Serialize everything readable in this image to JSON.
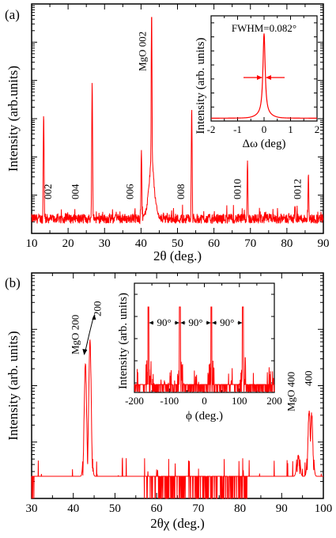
{
  "colors": {
    "trace": "#ff0000",
    "axis": "#000000",
    "background": "#ffffff"
  },
  "chart_data": [
    {
      "panel": "(a)",
      "type": "line",
      "xlabel": "2θ (deg.)",
      "ylabel": "Intensity (arb.units)",
      "xlim": [
        10,
        90
      ],
      "xticks": [
        10,
        20,
        30,
        40,
        50,
        60,
        70,
        80,
        90
      ],
      "y_scale": "log",
      "peaks": [
        {
          "x": 13.3,
          "height": 0.55
        },
        {
          "x": 26.6,
          "height": 0.7
        },
        {
          "x": 40.1,
          "height": 0.38
        },
        {
          "x": 42.9,
          "height": 1.0
        },
        {
          "x": 53.9,
          "height": 0.58
        },
        {
          "x": 69.2,
          "height": 0.33
        },
        {
          "x": 85.9,
          "height": 0.27
        }
      ],
      "annotations": [
        {
          "text": "002",
          "x": 14.5
        },
        {
          "text": "004",
          "x": 22.0
        },
        {
          "text": "006",
          "x": 37.0
        },
        {
          "text": "008",
          "x": 51.0
        },
        {
          "text": "0010",
          "x": 66.5
        },
        {
          "text": "0012",
          "x": 83.0
        },
        {
          "text": "MgO 002",
          "x": 40.5
        }
      ],
      "inset": {
        "type": "line",
        "xlabel": "Δω (deg)",
        "ylabel": "Intensity (arb. units)",
        "xlim": [
          -2,
          2
        ],
        "xticks": [
          -2,
          -1,
          0,
          1,
          2
        ],
        "fwhm_label": "FWHM=0.082°",
        "fwhm": 0.082
      }
    },
    {
      "panel": "(b)",
      "type": "line",
      "xlabel": "2θχ (deg.)",
      "ylabel": "Intensity (arb. units)",
      "xlim": [
        30,
        100
      ],
      "xticks": [
        30,
        40,
        50,
        60,
        70,
        80,
        90,
        100
      ],
      "y_scale": "log",
      "peaks": [
        {
          "x": 42.9,
          "height": 0.58
        },
        {
          "x": 44.0,
          "height": 0.68
        },
        {
          "x": 94.0,
          "height": 0.18
        },
        {
          "x": 96.6,
          "height": 0.38
        },
        {
          "x": 97.2,
          "height": 0.36
        }
      ],
      "annotations": [
        {
          "text": "MgO 200",
          "x": 40.5
        },
        {
          "text": "200",
          "x": 45.8
        },
        {
          "text": "MgO 400",
          "x": 92.5
        },
        {
          "text": "400",
          "x": 96.5
        }
      ],
      "inset": {
        "type": "line",
        "xlabel": "ϕ (deg.)",
        "ylabel": "Intensity (arb. units)",
        "xlim": [
          -200,
          200
        ],
        "xticks": [
          -200,
          -100,
          0,
          100,
          200
        ],
        "peaks_x": [
          -160,
          -70,
          20,
          110
        ],
        "spacing_labels": [
          "90°",
          "90°",
          "90°"
        ]
      }
    }
  ]
}
